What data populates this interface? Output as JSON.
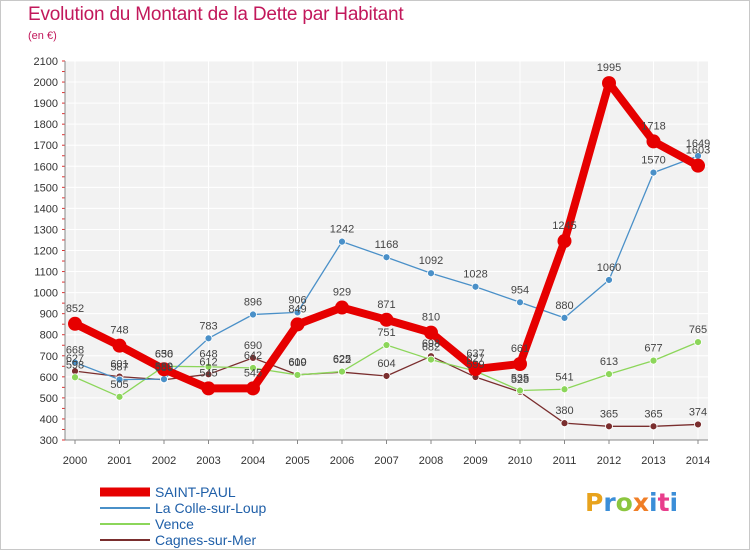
{
  "header": {
    "title": "Evolution du Montant de la Dette par Habitant",
    "unit": "(en €)"
  },
  "logo": {
    "text": "Proxiti"
  },
  "chart_data": {
    "type": "line",
    "title": "Evolution du Montant de la Dette par Habitant",
    "subtitle": "(en €)",
    "x": [
      "2000",
      "2001",
      "2002",
      "2003",
      "2004",
      "2005",
      "2006",
      "2007",
      "2008",
      "2009",
      "2010",
      "2011",
      "2012",
      "2013",
      "2014"
    ],
    "ylim": [
      300,
      2100
    ],
    "yticks": [
      300,
      400,
      500,
      600,
      700,
      800,
      900,
      1000,
      1100,
      1200,
      1300,
      1400,
      1500,
      1600,
      1700,
      1800,
      1900,
      2000,
      2100
    ],
    "grid": true,
    "legend_position": "bottom-left",
    "series": [
      {
        "name": "SAINT-PAUL",
        "color": "#e60000",
        "values": [
          852,
          748,
          636,
          545,
          545,
          849,
          929,
          871,
          810,
          637,
          661,
          1245,
          1995,
          1718,
          1603
        ],
        "labels": [
          "852",
          "748",
          "636",
          "545",
          "545",
          "849",
          "929",
          "871",
          "810",
          "637",
          "661",
          "1245",
          "1995",
          "1718",
          "1603"
        ]
      },
      {
        "name": "La Colle-sur-Loup",
        "color": "#4a90c8",
        "values": [
          668,
          587,
          589,
          783,
          896,
          906,
          1242,
          1168,
          1092,
          1028,
          954,
          880,
          1060,
          1570,
          1649
        ],
        "labels": [
          "668",
          "587",
          "589",
          "783",
          "896",
          "906",
          "1242",
          "1168",
          "1092",
          "1028",
          "954",
          "880",
          "1060",
          "1570",
          "1649"
        ]
      },
      {
        "name": "Vence",
        "color": "#8cd65a",
        "values": [
          598,
          505,
          650,
          648,
          642,
          609,
          625,
          751,
          682,
          627,
          535,
          541,
          613,
          677,
          765
        ],
        "labels": [
          "598",
          "505",
          "650",
          "648",
          "642",
          "609",
          "625",
          "751",
          "682",
          "627",
          "535",
          "541",
          "613",
          "677",
          "765"
        ]
      },
      {
        "name": "Cagnes-sur-Mer",
        "color": "#7a2e2e",
        "values": [
          627,
          601,
          586,
          612,
          690,
          610,
          622,
          604,
          698,
          599,
          528,
          380,
          365,
          365,
          374
        ],
        "labels": [
          "627",
          "601",
          "586",
          "612",
          "690",
          "610",
          "622",
          "604",
          "698",
          "599",
          "528",
          "380",
          "365",
          "365",
          "374"
        ]
      }
    ]
  }
}
